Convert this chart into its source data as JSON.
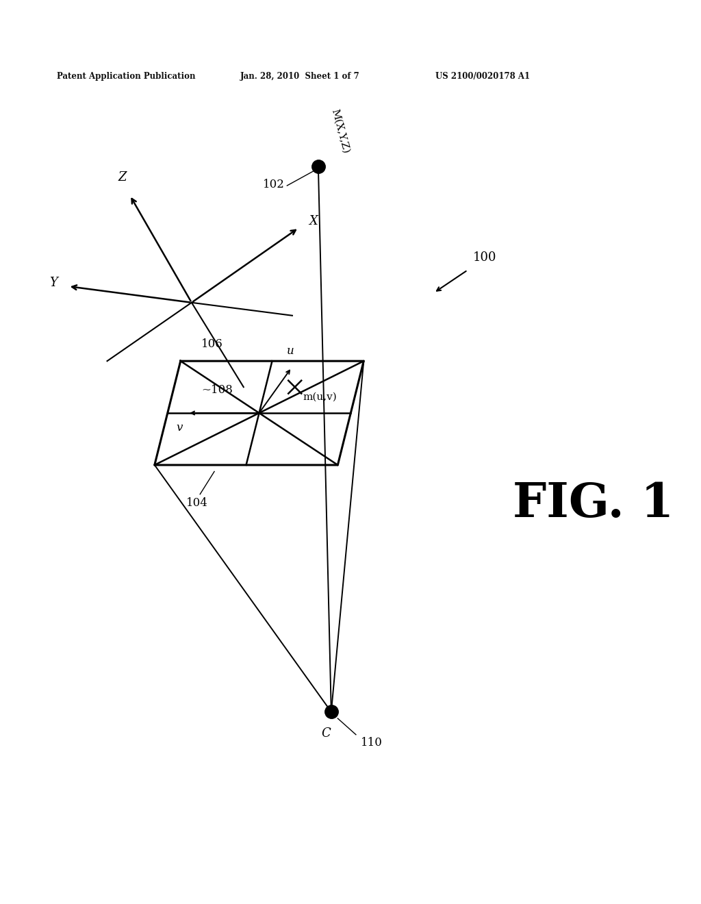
{
  "bg_color": "#ffffff",
  "header_left": "Patent Application Publication",
  "header_mid": "Jan. 28, 2010  Sheet 1 of 7",
  "header_right": "US 2100/0020178 A1",
  "fig_label": "FIG. 1",
  "system_label": "100",
  "point_M_label": "M(X,Y,Z)",
  "point_M_ref": "102",
  "coord_origin_ref": "106",
  "image_plane_ref": "104",
  "image_center_ref": "108",
  "point_C_label": "C",
  "point_C_ref": "110",
  "axis_x_label": "X",
  "axis_y_label": "Y",
  "axis_z_label": "Z",
  "img_u_label": "u",
  "img_v_label": "v",
  "img_m_label": "m(u,v)"
}
